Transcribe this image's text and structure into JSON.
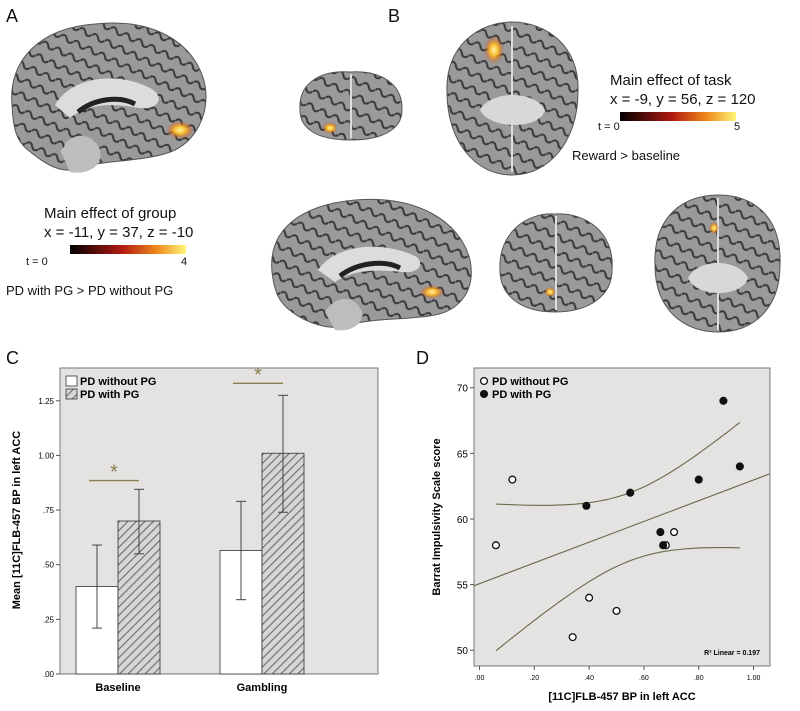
{
  "panels": {
    "A": {
      "letter": "A",
      "stat_title": "Main effect of group",
      "coords": "x = -11, y = 37, z = -10",
      "scale_min": "t = 0",
      "scale_max": "4",
      "contrast": "PD with PG > PD without PG"
    },
    "B": {
      "letter": "B",
      "stat_title": "Main effect of task",
      "coords": "x = -9, y = 56, z = 120",
      "scale_min": "t = 0",
      "scale_max": "5",
      "contrast": "Reward > baseline"
    },
    "C": {
      "letter": "C"
    },
    "D": {
      "letter": "D"
    }
  },
  "colors": {
    "panel_bg": "#e4e3e1",
    "hatch": "#6a6a6a",
    "curve": "#6b6a4a",
    "sig_mark": "#8a8050",
    "heat_low": "#000000",
    "heat_mid": "#b21a12",
    "heat_high": "#fff67a"
  },
  "chart_data": [
    {
      "type": "bar",
      "ylabel": "Mean [11C]FLB-457 BP in left ACC",
      "categories": [
        "Baseline",
        "Gambling"
      ],
      "series": [
        {
          "name": "PD without PG",
          "values": [
            0.4,
            0.565
          ],
          "error_low": [
            0.21,
            0.34
          ],
          "error_high": [
            0.59,
            0.79
          ]
        },
        {
          "name": "PD with PG",
          "values": [
            0.7,
            1.01
          ],
          "error_low": [
            0.55,
            0.74
          ],
          "error_high": [
            0.845,
            1.275
          ]
        }
      ],
      "yticks": [
        ".00",
        ".25",
        ".50",
        ".75",
        "1.00",
        "1.25"
      ],
      "ylim": [
        0,
        1.4
      ],
      "significance": [
        "*",
        "*"
      ],
      "legend": "top-left",
      "grid": false
    },
    {
      "type": "scatter",
      "xlabel": "[11C]FLB-457 BP in left ACC",
      "ylabel": "Barrat Impulsivity Scale score",
      "xticks": [
        ".00",
        ".20",
        ".40",
        ".60",
        ".80",
        "1.00"
      ],
      "yticks": [
        "50",
        "55",
        "60",
        "65",
        "70"
      ],
      "xlim": [
        -0.02,
        1.06
      ],
      "ylim": [
        48.8,
        71.5
      ],
      "series": [
        {
          "name": "PD without PG",
          "marker": "open",
          "points": [
            [
              0.06,
              58
            ],
            [
              0.12,
              63
            ],
            [
              0.4,
              54
            ],
            [
              0.34,
              51
            ],
            [
              0.5,
              53
            ],
            [
              0.68,
              58
            ],
            [
              0.71,
              59
            ]
          ]
        },
        {
          "name": "PD with PG",
          "marker": "filled",
          "points": [
            [
              0.39,
              61
            ],
            [
              0.55,
              62
            ],
            [
              0.66,
              59
            ],
            [
              0.67,
              58
            ],
            [
              0.8,
              63
            ],
            [
              0.89,
              69
            ],
            [
              0.95,
              64
            ]
          ]
        }
      ],
      "annotation": "R² Linear = 0.197",
      "legend": "top-left",
      "grid": false
    }
  ]
}
